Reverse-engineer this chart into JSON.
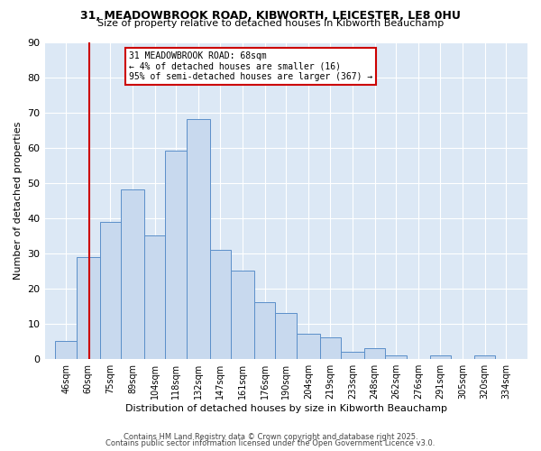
{
  "title1": "31, MEADOWBROOK ROAD, KIBWORTH, LEICESTER, LE8 0HU",
  "title2": "Size of property relative to detached houses in Kibworth Beauchamp",
  "xlabel": "Distribution of detached houses by size in Kibworth Beauchamp",
  "ylabel": "Number of detached properties",
  "bar_labels": [
    "46sqm",
    "60sqm",
    "75sqm",
    "89sqm",
    "104sqm",
    "118sqm",
    "132sqm",
    "147sqm",
    "161sqm",
    "176sqm",
    "190sqm",
    "204sqm",
    "219sqm",
    "233sqm",
    "248sqm",
    "262sqm",
    "276sqm",
    "291sqm",
    "305sqm",
    "320sqm",
    "334sqm"
  ],
  "bar_values": [
    5,
    29,
    39,
    48,
    35,
    59,
    68,
    31,
    25,
    16,
    13,
    7,
    6,
    2,
    3,
    1,
    0,
    1,
    0,
    1,
    0
  ],
  "bar_edges": [
    46,
    60,
    75,
    89,
    104,
    118,
    132,
    147,
    161,
    176,
    190,
    204,
    219,
    233,
    248,
    262,
    276,
    291,
    305,
    320,
    334,
    348
  ],
  "bar_color": "#c8d9ee",
  "bar_edgecolor": "#5b8fc9",
  "vline_x": 68,
  "vline_color": "#cc0000",
  "annotation_line1": "31 MEADOWBROOK ROAD: 68sqm",
  "annotation_line2": "← 4% of detached houses are smaller (16)",
  "annotation_line3": "95% of semi-detached houses are larger (367) →",
  "annotation_box_edgecolor": "#cc0000",
  "ylim": [
    0,
    90
  ],
  "yticks": [
    0,
    10,
    20,
    30,
    40,
    50,
    60,
    70,
    80,
    90
  ],
  "background_color": "#dce8f5",
  "footer1": "Contains HM Land Registry data © Crown copyright and database right 2025.",
  "footer2": "Contains public sector information licensed under the Open Government Licence v3.0."
}
